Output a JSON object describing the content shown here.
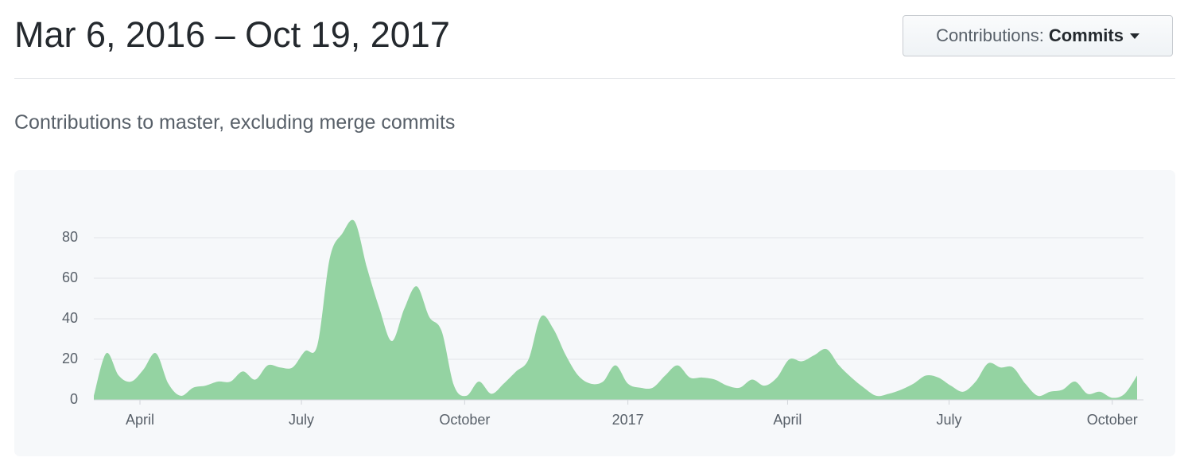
{
  "header": {
    "title": "Mar 6, 2016 – Oct 19, 2017",
    "button": {
      "label": "Contributions:",
      "value": "Commits"
    }
  },
  "chart_data": {
    "type": "area",
    "title": "Contributions to master, excluding merge commits",
    "x": [
      "2016-03-06",
      "2016-03-13",
      "2016-03-20",
      "2016-03-27",
      "2016-04-03",
      "2016-04-10",
      "2016-04-17",
      "2016-04-24",
      "2016-05-01",
      "2016-05-08",
      "2016-05-15",
      "2016-05-22",
      "2016-05-29",
      "2016-06-05",
      "2016-06-12",
      "2016-06-19",
      "2016-06-26",
      "2016-07-03",
      "2016-07-10",
      "2016-07-17",
      "2016-07-24",
      "2016-07-31",
      "2016-08-07",
      "2016-08-14",
      "2016-08-21",
      "2016-08-28",
      "2016-09-04",
      "2016-09-11",
      "2016-09-18",
      "2016-09-25",
      "2016-10-02",
      "2016-10-09",
      "2016-10-16",
      "2016-10-23",
      "2016-10-30",
      "2016-11-06",
      "2016-11-13",
      "2016-11-20",
      "2016-11-27",
      "2016-12-04",
      "2016-12-11",
      "2016-12-18",
      "2016-12-25",
      "2017-01-01",
      "2017-01-08",
      "2017-01-15",
      "2017-01-22",
      "2017-01-29",
      "2017-02-05",
      "2017-02-12",
      "2017-02-19",
      "2017-02-26",
      "2017-03-05",
      "2017-03-12",
      "2017-03-19",
      "2017-03-26",
      "2017-04-02",
      "2017-04-09",
      "2017-04-16",
      "2017-04-23",
      "2017-04-30",
      "2017-05-07",
      "2017-05-14",
      "2017-05-21",
      "2017-05-28",
      "2017-06-04",
      "2017-06-11",
      "2017-06-18",
      "2017-06-25",
      "2017-07-02",
      "2017-07-09",
      "2017-07-16",
      "2017-07-23",
      "2017-07-30",
      "2017-08-06",
      "2017-08-13",
      "2017-08-20",
      "2017-08-27",
      "2017-09-03",
      "2017-09-10",
      "2017-09-17",
      "2017-09-24",
      "2017-10-01",
      "2017-10-08",
      "2017-10-15"
    ],
    "values": [
      2,
      23,
      12,
      9,
      15,
      23,
      8,
      2,
      6,
      7,
      9,
      9,
      14,
      10,
      17,
      16,
      16,
      24,
      27,
      70,
      82,
      88,
      65,
      45,
      29,
      45,
      56,
      41,
      34,
      7,
      2,
      9,
      3,
      8,
      14,
      20,
      41,
      35,
      22,
      12,
      8,
      9,
      17,
      8,
      6,
      6,
      12,
      17,
      11,
      11,
      10,
      7,
      6,
      10,
      7,
      11,
      20,
      19,
      22,
      25,
      17,
      11,
      6,
      2,
      3,
      5,
      8,
      12,
      11,
      7,
      4,
      9,
      18,
      16,
      16,
      8,
      2,
      4,
      5,
      9,
      3,
      4,
      1,
      3,
      12
    ],
    "color": "#94d3a2",
    "xlim": [
      "2016-03-06",
      "2017-10-15"
    ],
    "xticks": [
      {
        "value": "2016-04-01",
        "label": "April"
      },
      {
        "value": "2016-07-01",
        "label": "July"
      },
      {
        "value": "2016-10-01",
        "label": "October"
      },
      {
        "value": "2017-01-01",
        "label": "2017"
      },
      {
        "value": "2017-04-01",
        "label": "April"
      },
      {
        "value": "2017-07-01",
        "label": "July"
      },
      {
        "value": "2017-10-01",
        "label": "October"
      }
    ],
    "ylim": [
      0,
      90
    ],
    "yticks": [
      0,
      20,
      40,
      60,
      80
    ],
    "grid": true
  }
}
